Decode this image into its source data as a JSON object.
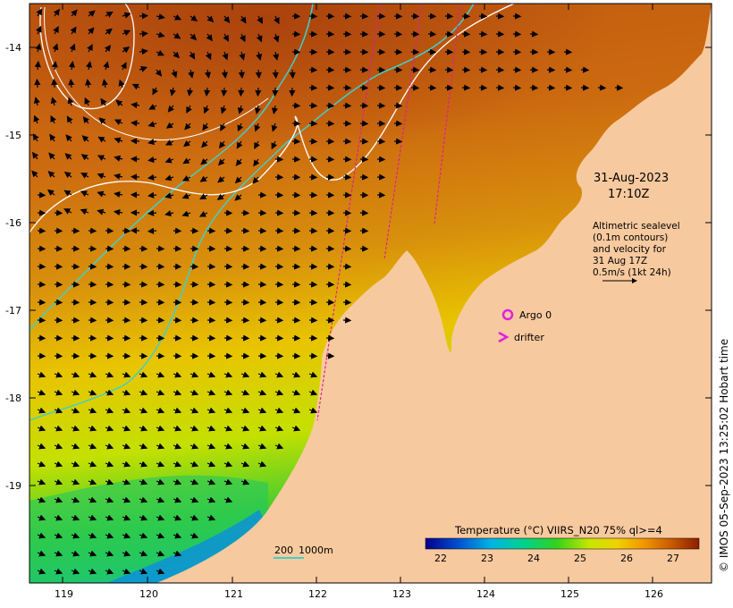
{
  "title": {
    "date": "31-Aug-2023",
    "time": "17:10Z"
  },
  "altimetry_note": [
    "Altimetric sealevel",
    "(0.1m contours)",
    "and velocity for",
    "31 Aug 17Z",
    "0.5m/s (1kt 24h)"
  ],
  "legend": {
    "argo_label": "Argo 0",
    "drifter_label": "drifter"
  },
  "depth_scale": {
    "label_200": "200",
    "label_1000": "1000m"
  },
  "colorbar": {
    "title": "Temperature (°C) VIIRS_N20 75% ql>=4",
    "ticks": [
      "22",
      "23",
      "24",
      "25",
      "26",
      "27"
    ]
  },
  "axes": {
    "x_ticks": [
      "119",
      "120",
      "121",
      "122",
      "123",
      "124",
      "125",
      "126"
    ],
    "y_ticks": [
      "-14",
      "-15",
      "-16",
      "-17",
      "-18",
      "-19"
    ]
  },
  "credit": "©  IMOS 05-Sep-2023 13:25:02  Hobart time",
  "colors": {
    "land": "#f7c99e",
    "isobath": "#40d0c8",
    "contour": "#ffffff",
    "track": "#e0208c",
    "argo": "#e020e0"
  }
}
